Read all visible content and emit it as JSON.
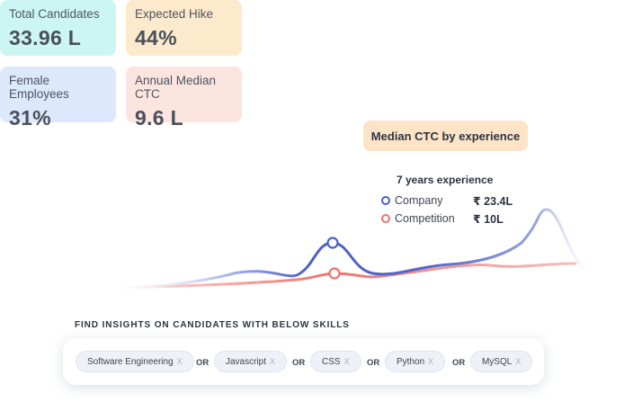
{
  "stats": [
    {
      "label": "Total Candidates",
      "value": "33.96 L"
    },
    {
      "label": "Expected Hike",
      "value": "44%"
    },
    {
      "label": "Female Employees",
      "value": "31%"
    },
    {
      "label": "Annual Median CTC",
      "value": "9.6 L"
    }
  ],
  "chart": {
    "title": "Median CTC by experience",
    "tooltip": {
      "title": "7 years experience",
      "company": {
        "label": "Company",
        "value": "₹ 23.4L",
        "color": "#4a5fc8"
      },
      "competition": {
        "label": "Competition",
        "value": "₹ 10L",
        "color": "#f0716a"
      }
    }
  },
  "skills": {
    "heading": "FIND INSIGHTS ON CANDIDATES WITH BELOW SKILLS",
    "items": [
      {
        "label": "Software Engineering",
        "remove": "X"
      },
      {
        "label": "Javascript",
        "remove": "X"
      },
      {
        "label": "CSS",
        "remove": "X"
      },
      {
        "label": "Python",
        "remove": "X"
      },
      {
        "label": "MySQL",
        "remove": "X"
      }
    ],
    "connector": "OR"
  }
}
